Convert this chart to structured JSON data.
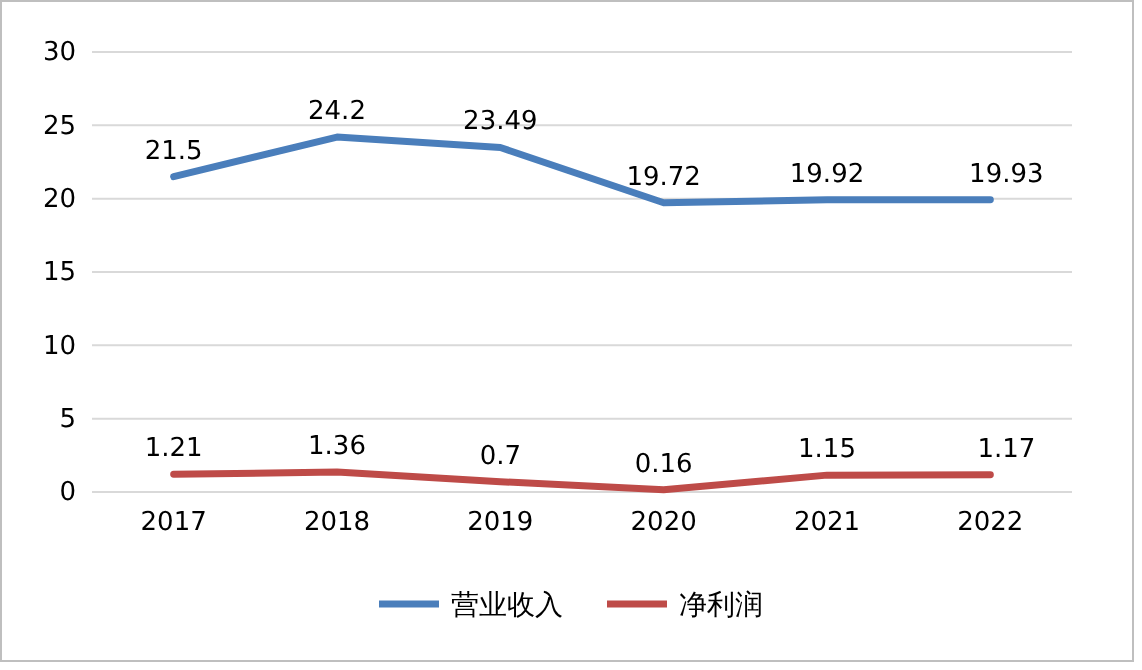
{
  "chart_data": {
    "type": "line",
    "categories": [
      "2017",
      "2018",
      "2019",
      "2020",
      "2021",
      "2022"
    ],
    "series": [
      {
        "name": "营业收入",
        "color": "#4a7ebb",
        "values": [
          21.5,
          24.2,
          23.49,
          19.72,
          19.92,
          19.93
        ]
      },
      {
        "name": "净利润",
        "color": "#be4b48",
        "values": [
          1.21,
          1.36,
          0.7,
          0.16,
          1.15,
          1.17
        ]
      }
    ],
    "ylim": [
      0,
      30
    ],
    "yticks": [
      0,
      5,
      10,
      15,
      20,
      25,
      30
    ],
    "grid": "y",
    "legend": "bottom",
    "data_labels": true,
    "marker": "none",
    "line_style": "solid"
  }
}
